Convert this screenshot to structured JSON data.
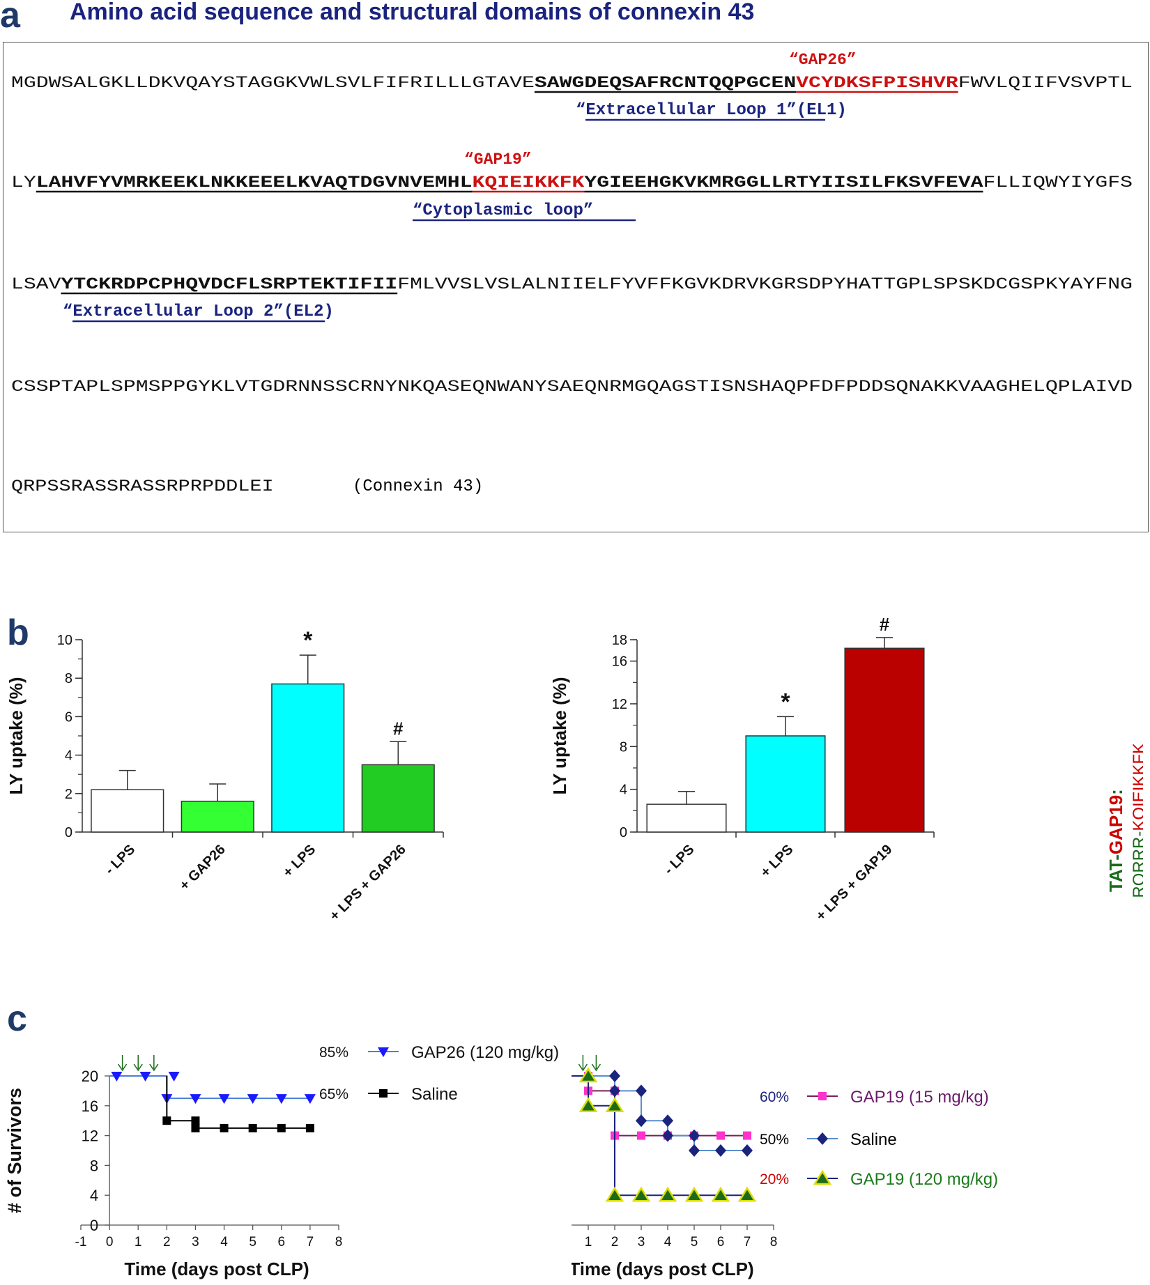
{
  "panel_a": {
    "letter": "a",
    "title": "Amino acid sequence and structural domains of connexin 43",
    "labels": {
      "gap26": "“GAP26”",
      "gap19": "“GAP19”",
      "el1": "“Extracellular Loop 1”(EL1)",
      "cyto": "“Cytoplasmic loop”",
      "el2": "“Extracellular Loop 2”(EL2)",
      "connexin": "(Connexin 43)"
    },
    "lines": [
      [
        {
          "t": "MGDWSALGKLLDKVQAYSTAGGKVWLSVLFIFRILLLGTAVE",
          "s": "n"
        },
        {
          "t": "SAWGDEQSAFRCNTQQPGCEN",
          "s": "b"
        },
        {
          "t": "VCYDKSFPISHVR",
          "s": "r"
        },
        {
          "t": "FWVLQIIFVSVPTL",
          "s": "n"
        }
      ],
      [
        {
          "t": "LY",
          "s": "n"
        },
        {
          "t": "LAHVFYVMRKEEKLNKKEEELKVAQTDGVNVEMHL",
          "s": "b"
        },
        {
          "t": "KQIEIKKFK",
          "s": "r"
        },
        {
          "t": "YGIEEHGKVKMRGGLLRTYIISILFKSVFEVA",
          "s": "b"
        },
        {
          "t": "FLLIQWYIYGFS",
          "s": "n"
        }
      ],
      [
        {
          "t": "LSAV",
          "s": "n"
        },
        {
          "t": "YTCKRDPCPHQVDCFLSRPTEKTIFII",
          "s": "b"
        },
        {
          "t": "FMLVVSLVSLALNIIELFYVFFKGVKDRVKGRSDPYHATTGPLSPSKDCGSPKYAYFNG",
          "s": "n"
        }
      ],
      [
        {
          "t": "CSSPTAPLSPMSPPGYKLVTGDRNNSSCRNYNKQASEQNWANYSAEQNRMGQAGSTISNSHAQPFDFPDDSQNAKKVAAGHELQPLAIVD",
          "s": "n"
        }
      ],
      [
        {
          "t": "QRPSSRASSRASSRPRPDDLEI",
          "s": "n"
        }
      ]
    ]
  },
  "panel_b": {
    "letter": "b",
    "peptide_label": {
      "tat": "TAT-",
      "gap19": "GAP19",
      "colon": ":",
      "seq_green": "YGRKKRRQRRR-",
      "seq_red": "KQIEIKKFK"
    },
    "colors": {
      "white": "#ffffff",
      "lightgreen": "#33ff33",
      "cyan": "#00ffff",
      "green": "#22cc22",
      "darkred": "#bb0000"
    }
  },
  "chart_data": [
    {
      "type": "bar",
      "categories": [
        "- LPS",
        "+ GAP26",
        "+ LPS",
        "+ LPS + GAP26"
      ],
      "values": [
        2.2,
        1.6,
        7.7,
        3.5
      ],
      "errors": [
        1.0,
        0.9,
        1.5,
        1.2
      ],
      "annotations": [
        "",
        "",
        "*",
        "#"
      ],
      "colors": [
        "#ffffff",
        "#33ff33",
        "#00ffff",
        "#22cc22"
      ],
      "ylabel": "LY uptake (%)",
      "ylim": [
        0,
        10
      ],
      "yticks": [
        0,
        2,
        4,
        6,
        8,
        10
      ]
    },
    {
      "type": "bar",
      "categories": [
        "- LPS",
        "+ LPS",
        "+ LPS + GAP19"
      ],
      "values": [
        2.6,
        9.0,
        17.2
      ],
      "errors": [
        1.2,
        1.8,
        1.0
      ],
      "annotations": [
        "",
        "*",
        "#"
      ],
      "colors": [
        "#ffffff",
        "#00ffff",
        "#bb0000"
      ],
      "ylabel": "LY uptake (%)",
      "ylim": [
        0,
        18
      ],
      "yticks": [
        0,
        4,
        8,
        12,
        16,
        18
      ]
    },
    {
      "type": "line",
      "letter": "c",
      "xlabel": "Time (days post CLP)",
      "ylabel": "# of Survivors",
      "xlim": [
        -1,
        8
      ],
      "ylim": [
        0,
        20
      ],
      "xticks": [
        -1,
        0,
        1,
        2,
        3,
        4,
        5,
        6,
        7,
        8
      ],
      "yticks": [
        0,
        4,
        8,
        12,
        16,
        20
      ],
      "arrows_x": [
        0.45,
        1.0,
        1.55
      ],
      "series": [
        {
          "name": "GAP26 (120 mg/kg)",
          "percent": "85%",
          "color": "#1a1aff",
          "line": "#4a7fd6",
          "marker": "tri-down",
          "x": [
            0.25,
            1.25,
            2.25,
            2,
            3,
            4,
            5,
            6,
            7
          ],
          "y": [
            20,
            20,
            20,
            17,
            17,
            17,
            17,
            17,
            17
          ],
          "step": [
            [
              0,
              20
            ],
            [
              2,
              20
            ],
            [
              2,
              17
            ],
            [
              7,
              17
            ]
          ]
        },
        {
          "name": "Saline",
          "percent": "65%",
          "color": "#000000",
          "line": "#000000",
          "marker": "square",
          "x": [
            2,
            3,
            3,
            4,
            5,
            6,
            7
          ],
          "y": [
            14,
            14,
            13,
            13,
            13,
            13,
            13
          ],
          "step": [
            [
              2,
              20
            ],
            [
              2,
              14
            ],
            [
              3,
              14
            ],
            [
              3,
              13
            ],
            [
              7,
              13
            ]
          ]
        }
      ]
    },
    {
      "type": "line",
      "xlabel": "Time (days post CLP)",
      "xlim": [
        -1,
        8
      ],
      "ylim": [
        0,
        10
      ],
      "xticks": [
        -1,
        0,
        1,
        2,
        3,
        4,
        5,
        6,
        7,
        8
      ],
      "yticks": [
        0,
        2,
        4,
        6,
        8,
        10
      ],
      "arrows_x": [
        0.2,
        0.8,
        1.3
      ],
      "series": [
        {
          "name": "GAP19 (15 mg/kg)",
          "percent": "60%",
          "label_color": "#6a1b6a",
          "pct_color": "#1a237e",
          "color": "#ff33cc",
          "line": "#7a1f5a",
          "marker": "square",
          "x": [
            0,
            1,
            1,
            2,
            2,
            3,
            4,
            5,
            6,
            7
          ],
          "y": [
            10,
            10,
            9,
            9,
            6,
            6,
            6,
            6,
            6,
            6
          ],
          "step": [
            [
              0,
              10
            ],
            [
              1,
              10
            ],
            [
              1,
              9
            ],
            [
              2,
              9
            ],
            [
              2,
              6
            ],
            [
              7,
              6
            ]
          ]
        },
        {
          "name": "Saline",
          "percent": "50%",
          "label_color": "#000000",
          "pct_color": "#000000",
          "color": "#1a237e",
          "line": "#5a8fcf",
          "marker": "diamond",
          "x": [
            0,
            1,
            2,
            2,
            3,
            3,
            4,
            4,
            5,
            5,
            6,
            7
          ],
          "y": [
            10,
            10,
            10,
            9,
            9,
            7,
            7,
            6,
            6,
            5,
            5,
            5
          ],
          "step": [
            [
              0,
              10
            ],
            [
              2,
              10
            ],
            [
              2,
              9
            ],
            [
              3,
              9
            ],
            [
              3,
              7
            ],
            [
              4,
              7
            ],
            [
              4,
              6
            ],
            [
              5,
              6
            ],
            [
              5,
              5
            ],
            [
              7,
              5
            ]
          ]
        },
        {
          "name": "GAP19 (120 mg/kg)",
          "percent": "20%",
          "label_color": "#1b7a1b",
          "pct_color": "#cc0000",
          "color": "#1b6b1b",
          "fill2": "#dddd00",
          "line": "#1a237e",
          "marker": "triangle",
          "x": [
            0,
            1,
            1,
            2,
            2,
            3,
            4,
            5,
            6,
            7
          ],
          "y": [
            10,
            10,
            8,
            8,
            2,
            2,
            2,
            2,
            2,
            2
          ],
          "step": [
            [
              0,
              10
            ],
            [
              1,
              10
            ],
            [
              1,
              8
            ],
            [
              2,
              8
            ],
            [
              2,
              2
            ],
            [
              7,
              2
            ]
          ]
        }
      ]
    }
  ]
}
